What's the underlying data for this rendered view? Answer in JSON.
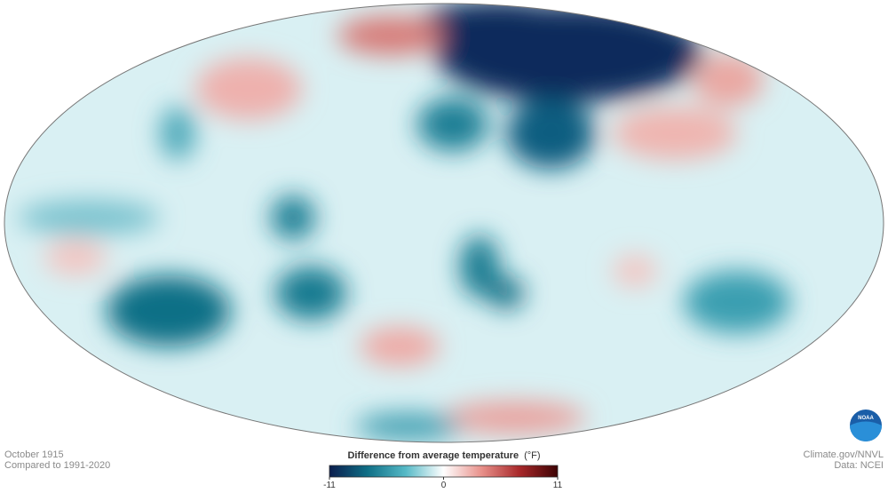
{
  "header": {
    "date": "October 1915",
    "baseline": "Compared to 1991-2020"
  },
  "credits": {
    "source": "Climate.gov/NNVL",
    "data": "Data: NCEI",
    "logo": "NOAA"
  },
  "legend": {
    "title": "Difference from average temperature",
    "unit": "(°F)",
    "range": [
      -11,
      11
    ],
    "ticks": [
      -11,
      0,
      11
    ],
    "colors": [
      "#0b1d4d",
      "#0f6f86",
      "#55b9c6",
      "#ffffff",
      "#e8908a",
      "#a8282a",
      "#3d0304"
    ]
  }
}
